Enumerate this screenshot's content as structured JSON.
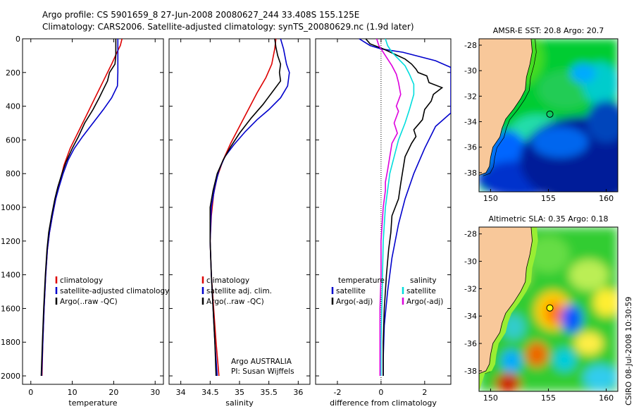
{
  "title_line1": "Argo profile: CS 5901659_8 27-Jun-2008 20080627_244 33.408S 155.125E",
  "title_line2": "Climatology: CARS2006. Satellite-adjusted climatology: synTS_20080629.nc (1.9d later)",
  "credit": "CSIRO 08-Jul-2008 10:30:59",
  "colors": {
    "climatology": "#dd0000",
    "satellite": "#0000cc",
    "argo": "#000000",
    "sal_satellite": "#00dddd",
    "sal_argo": "#dd00dd",
    "land": "#f8c89a",
    "marker_sst": "#000000",
    "marker_sla": "#ffff00"
  },
  "chart_data": [
    {
      "type": "line",
      "id": "temperature",
      "xlabel": "temperature",
      "ylabel": "",
      "xlim": [
        -2,
        32
      ],
      "ylim": [
        2050,
        0
      ],
      "y_inverted": true,
      "xticks": [
        0,
        10,
        20,
        30
      ],
      "yticks": [
        0,
        200,
        400,
        600,
        800,
        1000,
        1200,
        1400,
        1600,
        1800,
        2000
      ],
      "legend": [
        "climatology",
        "satellite-adjusted climatology",
        "Argo(..raw -QC)"
      ],
      "legend_position": "bottom-right",
      "series": [
        {
          "name": "climatology",
          "color": "#dd0000",
          "points": [
            [
              22,
              0
            ],
            [
              21.6,
              40
            ],
            [
              20.8,
              80
            ],
            [
              19.5,
              150
            ],
            [
              17.5,
              250
            ],
            [
              15.5,
              350
            ],
            [
              13.5,
              450
            ],
            [
              11.5,
              550
            ],
            [
              9.5,
              650
            ],
            [
              8,
              750
            ],
            [
              7,
              850
            ],
            [
              6,
              950
            ],
            [
              5.2,
              1050
            ],
            [
              4.5,
              1150
            ],
            [
              4,
              1250
            ],
            [
              3.6,
              1400
            ],
            [
              3.2,
              1600
            ],
            [
              2.9,
              1800
            ],
            [
              2.7,
              2000
            ]
          ]
        },
        {
          "name": "satellite-adjusted climatology",
          "color": "#0000cc",
          "points": [
            [
              21,
              0
            ],
            [
              21,
              100
            ],
            [
              21,
              200
            ],
            [
              20.9,
              280
            ],
            [
              19.5,
              350
            ],
            [
              17.5,
              420
            ],
            [
              15,
              500
            ],
            [
              12.5,
              580
            ],
            [
              10.5,
              650
            ],
            [
              9,
              720
            ],
            [
              7.8,
              800
            ],
            [
              6.8,
              880
            ],
            [
              6,
              950
            ],
            [
              5.2,
              1050
            ],
            [
              4.5,
              1150
            ],
            [
              4,
              1250
            ],
            [
              3.6,
              1400
            ],
            [
              3.2,
              1600
            ],
            [
              2.9,
              1800
            ],
            [
              2.6,
              2000
            ]
          ]
        },
        {
          "name": "Argo(..raw -QC)",
          "color": "#000000",
          "points": [
            [
              20.5,
              0
            ],
            [
              20.5,
              100
            ],
            [
              20.3,
              150
            ],
            [
              19,
              200
            ],
            [
              18.5,
              250
            ],
            [
              17.5,
              300
            ],
            [
              16.5,
              350
            ],
            [
              15,
              420
            ],
            [
              13,
              500
            ],
            [
              11.5,
              580
            ],
            [
              10,
              650
            ],
            [
              8.5,
              730
            ],
            [
              7.5,
              800
            ],
            [
              6.5,
              880
            ],
            [
              5.8,
              950
            ],
            [
              5,
              1050
            ],
            [
              4.3,
              1150
            ],
            [
              3.9,
              1250
            ],
            [
              3.5,
              1400
            ],
            [
              3.1,
              1600
            ],
            [
              2.8,
              1800
            ],
            [
              2.5,
              2000
            ]
          ]
        }
      ]
    },
    {
      "type": "line",
      "id": "salinity",
      "xlabel": "salinity",
      "ylabel": "",
      "xlim": [
        33.8,
        36.2
      ],
      "ylim": [
        2050,
        0
      ],
      "y_inverted": true,
      "xticks": [
        34,
        34.5,
        35,
        35.5,
        36
      ],
      "legend": [
        "climatology",
        "satellite adj. clim.",
        "Argo(..raw -QC)"
      ],
      "legend_position": "bottom-right",
      "annotation": [
        "Argo AUSTRALIA",
        "PI: Susan Wijffels"
      ],
      "series": [
        {
          "name": "climatology",
          "color": "#dd0000",
          "points": [
            [
              35.62,
              0
            ],
            [
              35.6,
              60
            ],
            [
              35.55,
              150
            ],
            [
              35.45,
              230
            ],
            [
              35.3,
              320
            ],
            [
              35.15,
              420
            ],
            [
              35,
              520
            ],
            [
              34.85,
              620
            ],
            [
              34.72,
              720
            ],
            [
              34.62,
              820
            ],
            [
              34.56,
              920
            ],
            [
              34.52,
              1050
            ],
            [
              34.5,
              1200
            ],
            [
              34.52,
              1400
            ],
            [
              34.56,
              1600
            ],
            [
              34.6,
              1800
            ],
            [
              34.65,
              2000
            ]
          ]
        },
        {
          "name": "satellite adj. clim.",
          "color": "#0000cc",
          "points": [
            [
              35.7,
              0
            ],
            [
              35.75,
              60
            ],
            [
              35.8,
              150
            ],
            [
              35.85,
              200
            ],
            [
              35.82,
              280
            ],
            [
              35.7,
              350
            ],
            [
              35.5,
              420
            ],
            [
              35.3,
              480
            ],
            [
              35.1,
              550
            ],
            [
              34.9,
              630
            ],
            [
              34.75,
              700
            ],
            [
              34.65,
              780
            ],
            [
              34.58,
              880
            ],
            [
              34.52,
              1000
            ],
            [
              34.5,
              1200
            ],
            [
              34.52,
              1400
            ],
            [
              34.55,
              1600
            ],
            [
              34.58,
              1800
            ],
            [
              34.62,
              2000
            ]
          ]
        },
        {
          "name": "Argo(..raw -QC)",
          "color": "#000000",
          "points": [
            [
              35.6,
              0
            ],
            [
              35.62,
              50
            ],
            [
              35.65,
              100
            ],
            [
              35.7,
              150
            ],
            [
              35.68,
              200
            ],
            [
              35.7,
              250
            ],
            [
              35.55,
              320
            ],
            [
              35.4,
              390
            ],
            [
              35.2,
              470
            ],
            [
              35,
              560
            ],
            [
              34.85,
              640
            ],
            [
              34.72,
              720
            ],
            [
              34.62,
              800
            ],
            [
              34.55,
              900
            ],
            [
              34.5,
              1000
            ],
            [
              34.5,
              1200
            ],
            [
              34.52,
              1400
            ],
            [
              34.55,
              1600
            ],
            [
              34.58,
              1800
            ],
            [
              34.6,
              2000
            ]
          ]
        }
      ]
    },
    {
      "type": "line",
      "id": "difference",
      "xlabel": "difference from climatology",
      "ylabel": "",
      "xlim": [
        -3,
        3.2
      ],
      "ylim": [
        2050,
        0
      ],
      "y_inverted": true,
      "xticks": [
        -2,
        0,
        2
      ],
      "zero_line": true,
      "legend_left_heading": "temperature",
      "legend_right_heading": "salinity",
      "legend_left": [
        "satellite",
        "Argo(-adj)"
      ],
      "legend_right": [
        "satellite",
        "Argo(-adj)"
      ],
      "legend_position": "bottom",
      "series": [
        {
          "name": "satellite",
          "group": "temperature",
          "color": "#0000cc",
          "points": [
            [
              -1,
              0
            ],
            [
              -0.5,
              40
            ],
            [
              0,
              60
            ],
            [
              1,
              80
            ],
            [
              2.5,
              130
            ],
            [
              3.2,
              170
            ],
            [
              3.2,
              200
            ],
            [
              3.2,
              300
            ],
            [
              3.2,
              440
            ],
            [
              2.5,
              520
            ],
            [
              2,
              650
            ],
            [
              1.5,
              800
            ],
            [
              1.1,
              950
            ],
            [
              0.8,
              1100
            ],
            [
              0.5,
              1300
            ],
            [
              0.3,
              1500
            ],
            [
              0.15,
              1700
            ],
            [
              0.1,
              1900
            ],
            [
              0.1,
              2000
            ]
          ]
        },
        {
          "name": "Argo(-adj)",
          "group": "temperature",
          "color": "#000000",
          "points": [
            [
              -0.7,
              0
            ],
            [
              -0.5,
              30
            ],
            [
              0.1,
              60
            ],
            [
              0.6,
              90
            ],
            [
              1.1,
              120
            ],
            [
              1.4,
              150
            ],
            [
              1.6,
              180
            ],
            [
              1.7,
              200
            ],
            [
              2.1,
              220
            ],
            [
              2.2,
              260
            ],
            [
              2.8,
              290
            ],
            [
              2.4,
              330
            ],
            [
              2.3,
              370
            ],
            [
              2.0,
              420
            ],
            [
              1.9,
              480
            ],
            [
              1.5,
              540
            ],
            [
              1.6,
              580
            ],
            [
              1.4,
              620
            ],
            [
              1.1,
              700
            ],
            [
              1,
              780
            ],
            [
              0.9,
              860
            ],
            [
              0.8,
              950
            ],
            [
              0.5,
              1050
            ],
            [
              0.45,
              1150
            ],
            [
              0.35,
              1250
            ],
            [
              0.25,
              1400
            ],
            [
              0.2,
              1500
            ],
            [
              0.15,
              1600
            ],
            [
              0.1,
              1800
            ],
            [
              0.1,
              2000
            ]
          ]
        },
        {
          "name": "satellite",
          "group": "salinity",
          "color": "#00dddd",
          "points": [
            [
              0.2,
              0
            ],
            [
              0.3,
              40
            ],
            [
              0.5,
              80
            ],
            [
              0.8,
              120
            ],
            [
              1.1,
              160
            ],
            [
              1.3,
              210
            ],
            [
              1.5,
              270
            ],
            [
              1.5,
              330
            ],
            [
              1.3,
              420
            ],
            [
              1.1,
              500
            ],
            [
              0.8,
              600
            ],
            [
              0.6,
              700
            ],
            [
              0.4,
              800
            ],
            [
              0.3,
              900
            ],
            [
              0.2,
              1000
            ],
            [
              0.1,
              1200
            ],
            [
              0.05,
              1500
            ],
            [
              0,
              1800
            ],
            [
              0,
              2000
            ]
          ]
        },
        {
          "name": "Argo(-adj)",
          "group": "salinity",
          "color": "#dd00dd",
          "points": [
            [
              -0.2,
              0
            ],
            [
              -0.1,
              40
            ],
            [
              0.1,
              80
            ],
            [
              0.3,
              120
            ],
            [
              0.5,
              160
            ],
            [
              0.7,
              210
            ],
            [
              0.8,
              260
            ],
            [
              0.9,
              330
            ],
            [
              0.7,
              400
            ],
            [
              0.8,
              430
            ],
            [
              0.6,
              500
            ],
            [
              0.75,
              560
            ],
            [
              0.5,
              620
            ],
            [
              0.4,
              700
            ],
            [
              0.3,
              780
            ],
            [
              0.2,
              850
            ],
            [
              0.2,
              900
            ],
            [
              0.1,
              1000
            ],
            [
              0,
              1200
            ],
            [
              0,
              1400
            ],
            [
              -0.05,
              1600
            ],
            [
              -0.05,
              1800
            ],
            [
              -0.05,
              2000
            ]
          ]
        }
      ]
    },
    {
      "type": "heatmap",
      "id": "sst_map",
      "title": "AMSR-E SST: 20.8 Argo: 20.7",
      "xlim": [
        149,
        161
      ],
      "ylim": [
        -39.5,
        -27.5
      ],
      "xticks": [
        150,
        155,
        160
      ],
      "yticks": [
        -28,
        -30,
        -32,
        -34,
        -36,
        -38
      ],
      "marker": [
        155.125,
        -33.408
      ]
    },
    {
      "type": "heatmap",
      "id": "sla_map",
      "title": "Altimetric SLA: 0.35 Argo: 0.18",
      "xlim": [
        149,
        161
      ],
      "ylim": [
        -39.5,
        -27.5
      ],
      "xticks": [
        150,
        155,
        160
      ],
      "yticks": [
        -28,
        -30,
        -32,
        -34,
        -36,
        -38
      ],
      "marker": [
        155.125,
        -33.408
      ]
    }
  ]
}
